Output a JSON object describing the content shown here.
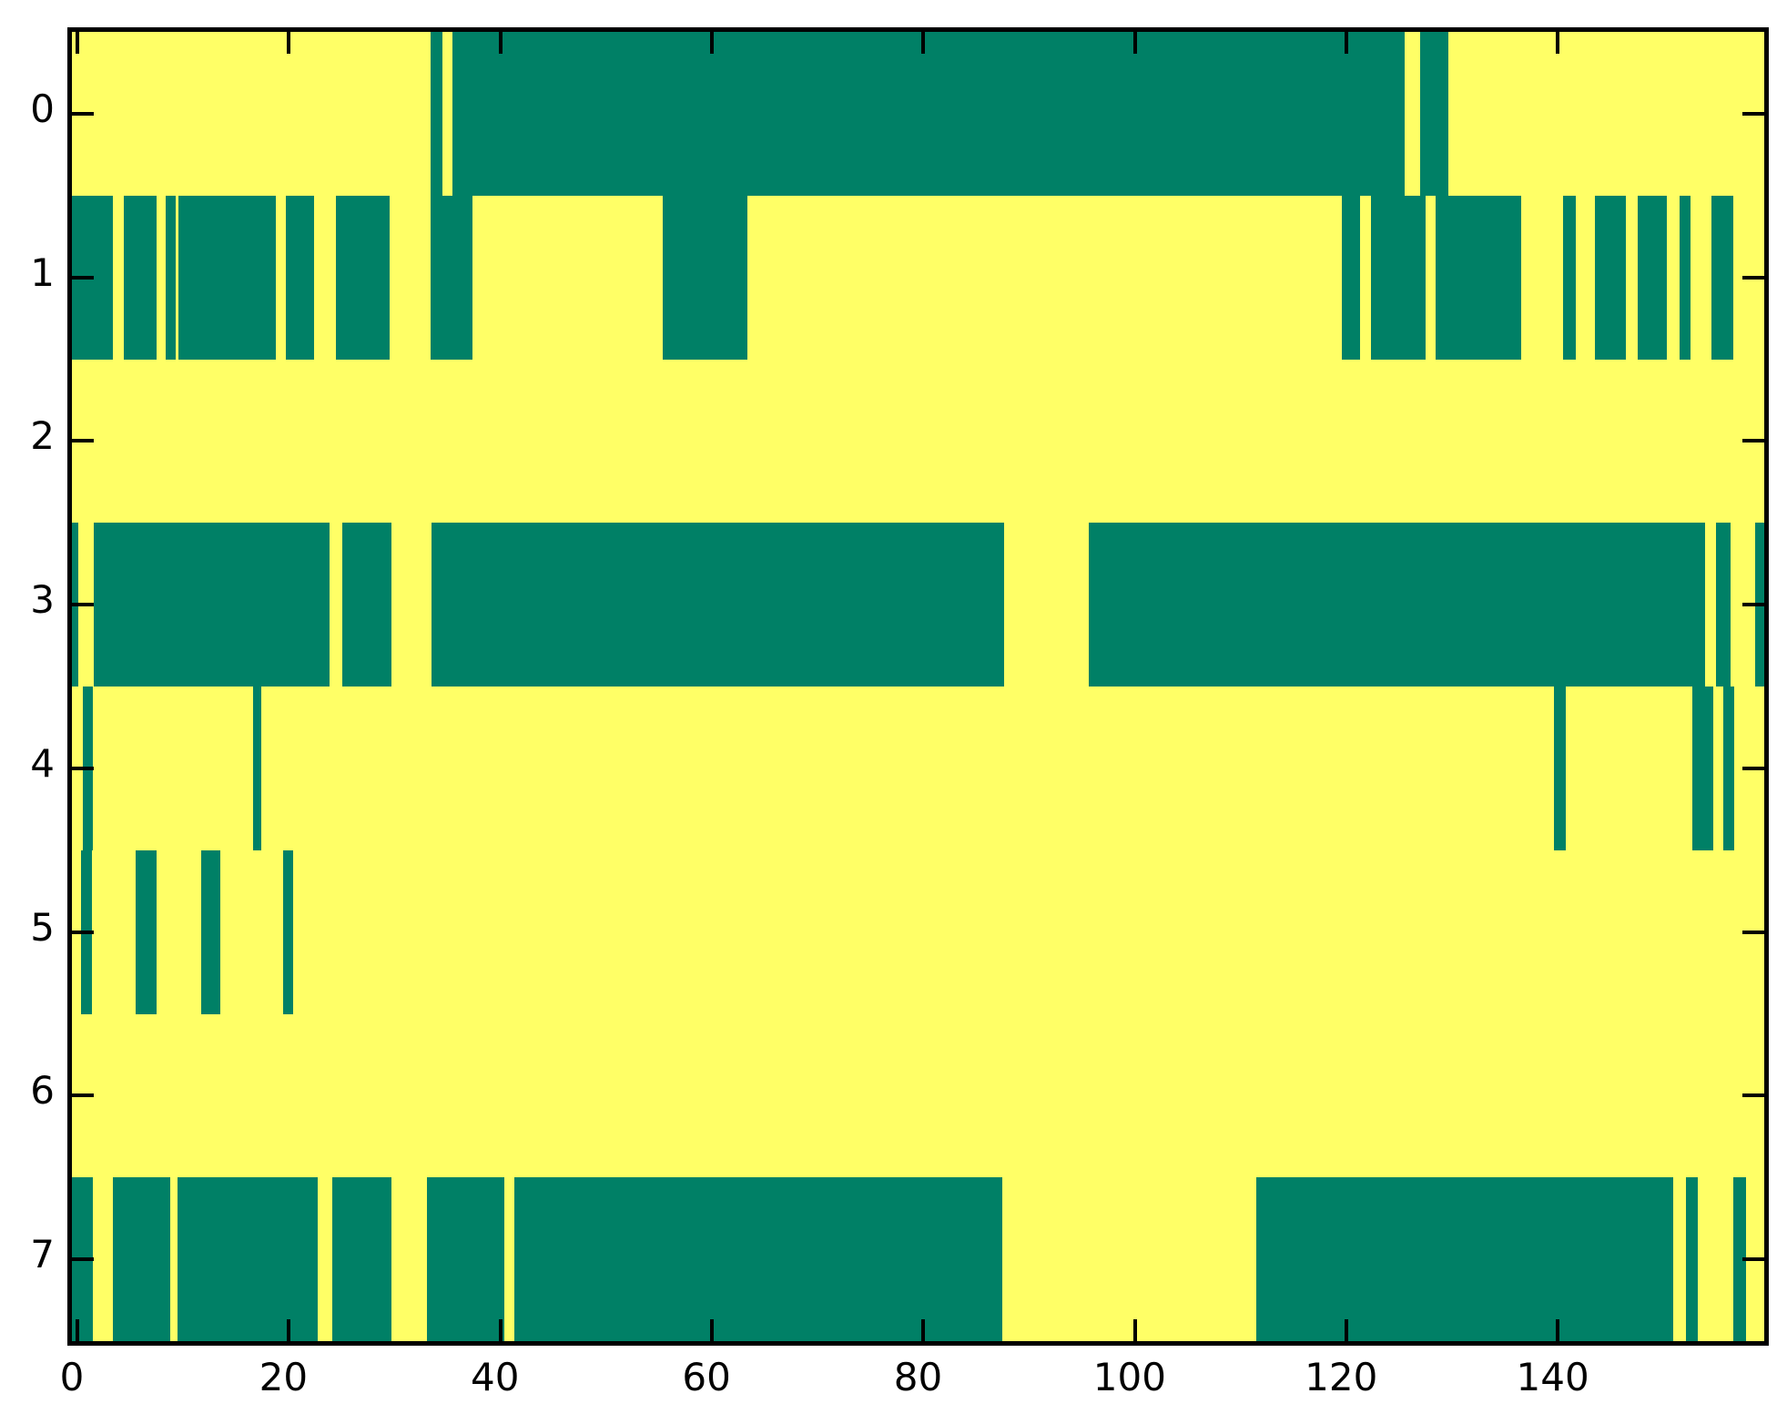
{
  "figure": {
    "background": "#ffffff",
    "axis_color": "#000000",
    "cell_on_color": "#008066",
    "cell_off_color": "#ffff66"
  },
  "chart_data": {
    "type": "heatmap",
    "title": "",
    "xlabel": "",
    "ylabel": "",
    "colormap": "summer (binary: low=teal #008066 shown as segments, high=yellow #ffff66 background)",
    "grid": false,
    "x_range": [
      -0.5,
      159.5
    ],
    "y_range": [
      -0.5,
      7.5
    ],
    "x_tick_labels": [
      "0",
      "20",
      "40",
      "60",
      "80",
      "100",
      "120",
      "140"
    ],
    "x_tick_values": [
      0,
      20,
      40,
      60,
      80,
      100,
      120,
      140
    ],
    "y_tick_labels": [
      "0",
      "1",
      "2",
      "3",
      "4",
      "5",
      "6",
      "7"
    ],
    "y_tick_values": [
      0,
      1,
      2,
      3,
      4,
      5,
      6,
      7
    ],
    "n_rows": 8,
    "teal_segments_by_row": [
      [
        [
          33.4,
          34.5
        ],
        [
          35.5,
          125.5
        ],
        [
          127.0,
          129.6
        ]
      ],
      [
        [
          -0.5,
          3.4
        ],
        [
          4.4,
          7.5
        ],
        [
          8.4,
          9.3
        ],
        [
          9.6,
          18.8
        ],
        [
          19.7,
          22.4
        ],
        [
          24.5,
          29.5
        ],
        [
          33.4,
          37.4
        ],
        [
          55.4,
          63.4
        ],
        [
          119.6,
          121.3
        ],
        [
          122.3,
          127.5
        ],
        [
          128.4,
          136.5
        ],
        [
          140.5,
          141.7
        ],
        [
          143.5,
          146.4
        ],
        [
          147.5,
          150.3
        ],
        [
          151.5,
          152.5
        ],
        [
          154.5,
          156.6
        ]
      ],
      [],
      [
        [
          -0.5,
          0.1
        ],
        [
          1.6,
          23.9
        ],
        [
          25.1,
          29.7
        ],
        [
          33.5,
          87.6
        ],
        [
          95.6,
          153.9
        ],
        [
          154.9,
          156.3
        ],
        [
          158.6,
          159.5
        ]
      ],
      [
        [
          0.5,
          1.5
        ],
        [
          16.6,
          17.4
        ],
        [
          139.6,
          140.7
        ],
        [
          152.7,
          154.7
        ],
        [
          155.6,
          156.7
        ]
      ],
      [
        [
          0.4,
          1.4
        ],
        [
          5.5,
          7.5
        ],
        [
          11.7,
          13.5
        ],
        [
          19.5,
          20.4
        ]
      ],
      [],
      [
        [
          -0.5,
          1.5
        ],
        [
          3.4,
          8.8
        ],
        [
          9.5,
          22.7
        ],
        [
          24.1,
          29.7
        ],
        [
          33.1,
          40.4
        ],
        [
          41.3,
          87.5
        ],
        [
          111.5,
          150.9
        ],
        [
          152.1,
          153.2
        ],
        [
          156.6,
          157.8
        ]
      ]
    ]
  }
}
